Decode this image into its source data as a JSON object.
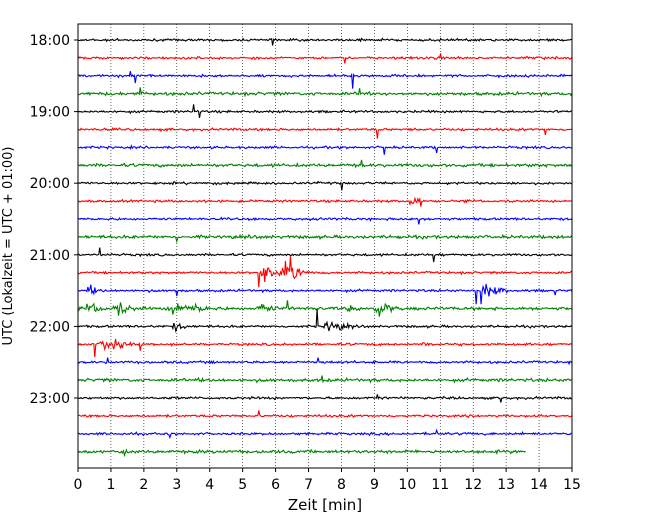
{
  "chart_data": {
    "type": "line",
    "title": "",
    "xlabel": "Zeit  [min]",
    "ylabel": "UTC (Lokalzeit = UTC + 01:00)",
    "xlim": [
      0,
      15
    ],
    "x_ticks": [
      "0",
      "1",
      "2",
      "3",
      "4",
      "5",
      "6",
      "7",
      "8",
      "9",
      "10",
      "11",
      "12",
      "13",
      "14",
      "15"
    ],
    "y_tick_labels": [
      "18:00",
      "19:00",
      "20:00",
      "21:00",
      "22:00",
      "23:00"
    ],
    "grid": "vertical dotted at each minute",
    "trace_colors": [
      "#000000",
      "#ff0000",
      "#0000ff",
      "#008000"
    ],
    "traces": [
      {
        "start": "18:00",
        "end_min": 15,
        "events": [],
        "spikes": [
          {
            "t": 5.9,
            "a": 0.6
          }
        ]
      },
      {
        "start": "18:15",
        "end_min": 15,
        "events": [],
        "spikes": [
          {
            "t": 8.1,
            "a": 0.6
          },
          {
            "t": 11.0,
            "a": 0.5
          }
        ]
      },
      {
        "start": "18:30",
        "end_min": 15,
        "events": [],
        "spikes": [
          {
            "t": 1.75,
            "a": 0.8
          },
          {
            "t": 8.35,
            "a": 1.4
          },
          {
            "t": 1.6,
            "a": 0.5
          }
        ]
      },
      {
        "start": "18:45",
        "end_min": 15,
        "events": [],
        "spikes": [
          {
            "t": 1.9,
            "a": 0.7
          },
          {
            "t": 8.55,
            "a": 0.6
          }
        ]
      },
      {
        "start": "19:00",
        "end_min": 15,
        "events": [],
        "spikes": [
          {
            "t": 3.5,
            "a": 0.8
          },
          {
            "t": 3.7,
            "a": 0.7
          }
        ]
      },
      {
        "start": "19:15",
        "end_min": 15,
        "events": [],
        "spikes": [
          {
            "t": 9.1,
            "a": 1.0
          },
          {
            "t": 14.2,
            "a": 0.6
          }
        ]
      },
      {
        "start": "19:30",
        "end_min": 15,
        "events": [],
        "spikes": [
          {
            "t": 9.3,
            "a": 0.8
          },
          {
            "t": 10.9,
            "a": 0.6
          }
        ]
      },
      {
        "start": "19:45",
        "end_min": 15,
        "events": [],
        "spikes": [
          {
            "t": 8.6,
            "a": 0.6
          }
        ]
      },
      {
        "start": "20:00",
        "end_min": 15,
        "events": [],
        "spikes": [
          {
            "t": 8.0,
            "a": 0.8
          }
        ]
      },
      {
        "start": "20:15",
        "end_min": 15,
        "events": [
          {
            "t": 10.1,
            "dur": 0.25,
            "a": 1.2
          }
        ],
        "spikes": [
          {
            "t": 10.4,
            "a": 0.6
          }
        ]
      },
      {
        "start": "20:30",
        "end_min": 15,
        "events": [],
        "spikes": [
          {
            "t": 10.35,
            "a": 0.6
          }
        ]
      },
      {
        "start": "20:45",
        "end_min": 15,
        "events": [],
        "spikes": [
          {
            "t": 3.0,
            "a": 0.5
          }
        ]
      },
      {
        "start": "21:00",
        "end_min": 15,
        "events": [],
        "spikes": [
          {
            "t": 0.65,
            "a": 0.8
          },
          {
            "t": 10.8,
            "a": 0.8
          }
        ]
      },
      {
        "start": "21:15",
        "end_min": 15,
        "events": [
          {
            "t": 5.6,
            "dur": 0.5,
            "a": 2.3
          },
          {
            "t": 6.3,
            "dur": 0.5,
            "a": 2.4
          }
        ],
        "spikes": [
          {
            "t": 6.45,
            "a": 1.8
          },
          {
            "t": 5.5,
            "a": 1.6
          }
        ]
      },
      {
        "start": "21:30",
        "end_min": 15,
        "events": [
          {
            "t": 12.2,
            "dur": 0.6,
            "a": 1.6
          },
          {
            "t": 0.3,
            "dur": 0.3,
            "a": 0.8
          }
        ],
        "spikes": [
          {
            "t": 12.1,
            "a": 1.5
          },
          {
            "t": 12.25,
            "a": 1.5
          },
          {
            "t": 14.5,
            "a": 0.5
          },
          {
            "t": 3.0,
            "a": 0.6
          }
        ]
      },
      {
        "start": "21:45",
        "end_min": 15,
        "events": [
          {
            "t": 0.3,
            "dur": 0.35,
            "a": 1.2
          },
          {
            "t": 1.1,
            "dur": 0.4,
            "a": 1.5
          },
          {
            "t": 2.8,
            "dur": 0.4,
            "a": 2.2
          },
          {
            "t": 3.5,
            "dur": 0.3,
            "a": 1.0
          },
          {
            "t": 5.5,
            "dur": 0.35,
            "a": 1.0
          },
          {
            "t": 9.0,
            "dur": 0.5,
            "a": 1.6
          },
          {
            "t": 8.2,
            "dur": 0.25,
            "a": 0.6
          }
        ],
        "spikes": [
          {
            "t": 6.35,
            "a": 0.9
          }
        ]
      },
      {
        "start": "22:00",
        "end_min": 15,
        "events": [
          {
            "t": 7.5,
            "dur": 0.6,
            "a": 1.1
          },
          {
            "t": 2.9,
            "dur": 0.3,
            "a": 0.8
          }
        ],
        "spikes": [
          {
            "t": 7.25,
            "a": 1.9
          }
        ]
      },
      {
        "start": "22:15",
        "end_min": 15,
        "events": [
          {
            "t": 0.7,
            "dur": 0.7,
            "a": 1.6
          },
          {
            "t": 10.4,
            "dur": 0.25,
            "a": 0.6
          }
        ],
        "spikes": [
          {
            "t": 0.5,
            "a": 1.4
          },
          {
            "t": 1.9,
            "a": 0.7
          }
        ]
      },
      {
        "start": "22:30",
        "end_min": 15,
        "events": [],
        "spikes": [
          {
            "t": 0.9,
            "a": 0.5
          },
          {
            "t": 7.3,
            "a": 0.5
          }
        ]
      },
      {
        "start": "22:45",
        "end_min": 15,
        "events": [],
        "spikes": [
          {
            "t": 7.4,
            "a": 0.5
          }
        ]
      },
      {
        "start": "23:00",
        "end_min": 15,
        "events": [],
        "spikes": [
          {
            "t": 12.85,
            "a": 0.5
          },
          {
            "t": 9.1,
            "a": 0.4
          }
        ]
      },
      {
        "start": "23:15",
        "end_min": 15,
        "events": [],
        "spikes": [
          {
            "t": 5.5,
            "a": 0.6
          }
        ]
      },
      {
        "start": "23:30",
        "end_min": 15,
        "events": [],
        "spikes": [
          {
            "t": 2.8,
            "a": 0.4
          },
          {
            "t": 10.9,
            "a": 0.4
          }
        ]
      },
      {
        "start": "23:45",
        "end_min": 13.6,
        "events": [],
        "spikes": [
          {
            "t": 1.4,
            "a": 0.4
          }
        ]
      }
    ]
  }
}
